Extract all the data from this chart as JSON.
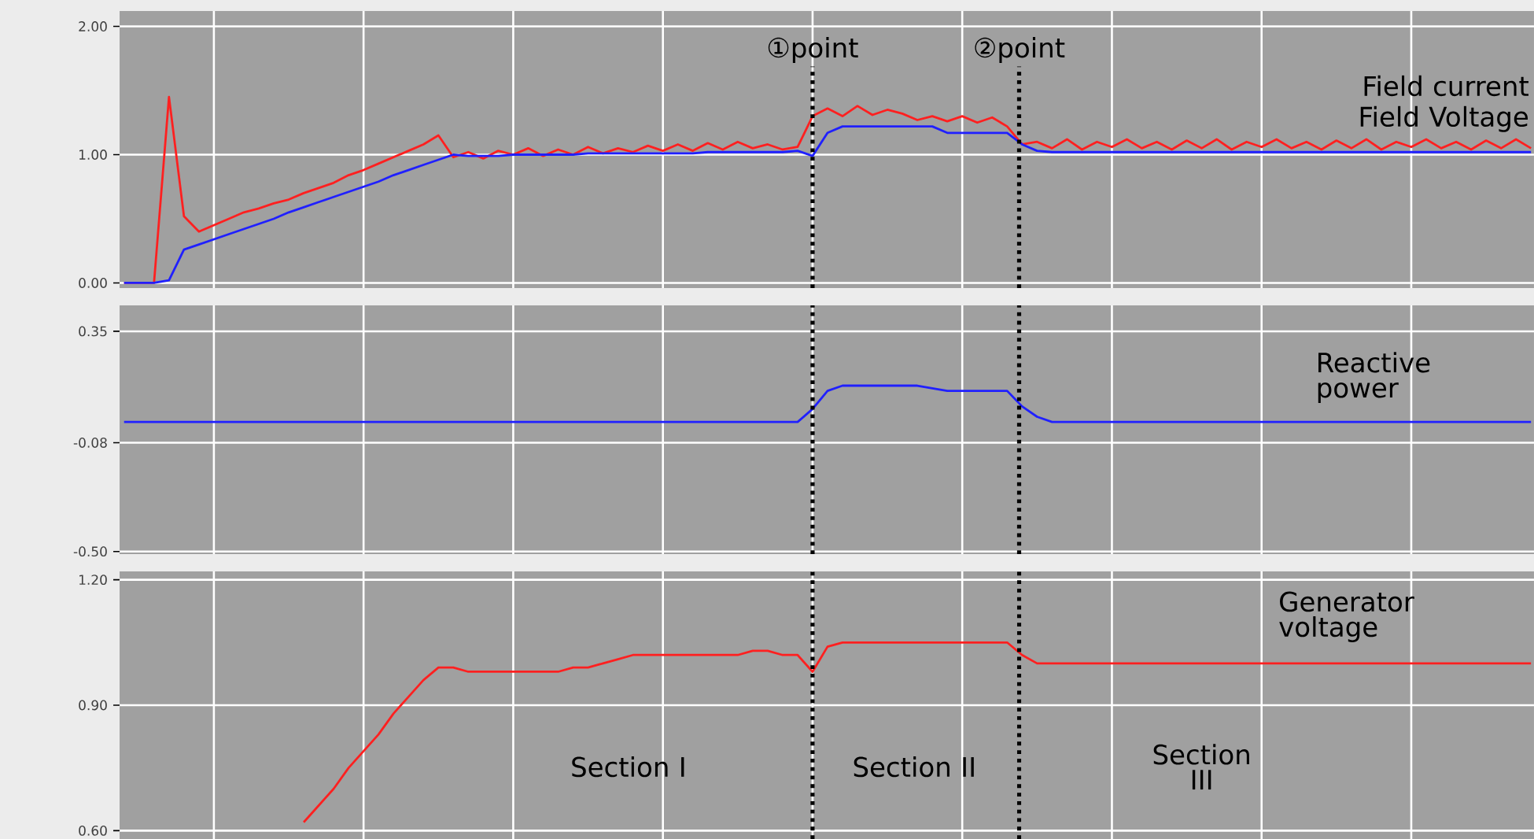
{
  "chart_data": [
    {
      "type": "line",
      "ylim": [
        -0.04,
        2.12
      ],
      "categories": [
        null,
        null,
        null,
        null,
        null,
        null,
        null,
        null,
        null,
        null,
        null,
        null,
        null,
        null,
        null,
        null,
        null,
        null,
        null,
        null,
        null,
        null,
        null,
        null,
        null,
        null,
        null,
        null,
        null,
        null,
        null,
        null,
        null,
        null,
        null,
        null,
        null,
        null,
        null,
        null,
        null,
        null,
        null,
        null,
        null,
        null,
        null,
        null,
        null,
        null,
        null,
        null,
        null,
        null,
        null,
        null,
        null,
        null,
        null,
        null,
        null,
        null,
        null,
        null,
        null,
        null,
        null,
        null,
        null,
        null,
        null,
        null,
        null,
        null,
        null,
        null,
        null,
        null,
        null,
        null,
        null,
        null,
        null,
        null,
        null,
        null,
        null,
        null,
        null,
        null,
        null,
        null,
        null,
        null,
        null
      ],
      "yticks": [
        {
          "value": 0,
          "label": "0.00"
        },
        {
          "value": 1,
          "label": "1.00"
        },
        {
          "value": 2,
          "label": "2.00"
        }
      ],
      "tick_labels": "y",
      "grid": true,
      "series": [
        {
          "color": "#ff2020",
          "values": [
            0,
            0,
            0,
            1.45,
            0.52,
            0.4,
            0.45,
            0.5,
            0.55,
            0.58,
            0.62,
            0.65,
            0.7,
            0.74,
            0.78,
            0.84,
            0.88,
            0.93,
            0.98,
            1.03,
            1.08,
            1.15,
            0.98,
            1.02,
            0.97,
            1.03,
            1.0,
            1.05,
            0.99,
            1.04,
            1.0,
            1.06,
            1.01,
            1.05,
            1.02,
            1.07,
            1.03,
            1.08,
            1.03,
            1.09,
            1.04,
            1.1,
            1.05,
            1.08,
            1.04,
            1.06,
            1.3,
            1.36,
            1.3,
            1.38,
            1.31,
            1.35,
            1.32,
            1.27,
            1.3,
            1.26,
            1.3,
            1.25,
            1.29,
            1.22,
            1.08,
            1.1,
            1.05,
            1.12,
            1.04,
            1.1,
            1.06,
            1.12,
            1.05,
            1.1,
            1.04,
            1.11,
            1.05,
            1.12,
            1.04,
            1.1,
            1.06,
            1.12,
            1.05,
            1.1,
            1.04,
            1.11,
            1.05,
            1.12,
            1.04,
            1.1,
            1.06,
            1.12,
            1.05,
            1.1,
            1.04,
            1.11,
            1.05,
            1.12,
            1.05
          ]
        },
        {
          "color": "#2020ff",
          "values": [
            0,
            0,
            0,
            0.02,
            0.26,
            0.3,
            0.34,
            0.38,
            0.42,
            0.46,
            0.5,
            0.55,
            0.59,
            0.63,
            0.67,
            0.71,
            0.75,
            0.79,
            0.84,
            0.88,
            0.92,
            0.96,
            1.0,
            0.99,
            0.99,
            0.99,
            1.0,
            1.0,
            1.0,
            1.0,
            1.0,
            1.01,
            1.01,
            1.01,
            1.01,
            1.01,
            1.01,
            1.01,
            1.01,
            1.02,
            1.02,
            1.02,
            1.02,
            1.02,
            1.02,
            1.03,
            0.99,
            1.17,
            1.22,
            1.22,
            1.22,
            1.22,
            1.22,
            1.22,
            1.22,
            1.17,
            1.17,
            1.17,
            1.17,
            1.17,
            1.08,
            1.03,
            1.02,
            1.02,
            1.02,
            1.02,
            1.02,
            1.02,
            1.02,
            1.02,
            1.02,
            1.02,
            1.02,
            1.02,
            1.02,
            1.02,
            1.02,
            1.02,
            1.02,
            1.02,
            1.02,
            1.02,
            1.02,
            1.02,
            1.02,
            1.02,
            1.02,
            1.02,
            1.02,
            1.02,
            1.02,
            1.02,
            1.02,
            1.02,
            1.02
          ]
        }
      ],
      "ref_lines": [
        {
          "axis": "x",
          "label": "①point",
          "color": "#000000",
          "line_style": "dotted"
        },
        {
          "axis": "x",
          "label": "②point",
          "color": "#000000",
          "line_style": "dotted"
        }
      ],
      "annotations": [
        "Field current",
        "Field Voltage"
      ]
    },
    {
      "type": "line",
      "ylim": [
        -0.51,
        0.45
      ],
      "categories": [
        null,
        null,
        null,
        null,
        null,
        null,
        null,
        null,
        null,
        null,
        null,
        null,
        null,
        null,
        null,
        null,
        null,
        null,
        null,
        null,
        null,
        null,
        null,
        null,
        null,
        null,
        null,
        null,
        null,
        null,
        null,
        null,
        null,
        null,
        null,
        null,
        null,
        null,
        null,
        null,
        null,
        null,
        null,
        null,
        null,
        null,
        null,
        null,
        null,
        null,
        null,
        null,
        null,
        null,
        null,
        null,
        null,
        null,
        null,
        null,
        null,
        null,
        null,
        null,
        null,
        null,
        null,
        null,
        null,
        null,
        null,
        null,
        null,
        null,
        null,
        null,
        null,
        null,
        null,
        null,
        null,
        null,
        null,
        null,
        null,
        null,
        null,
        null,
        null,
        null,
        null,
        null,
        null,
        null,
        null
      ],
      "yticks": [
        {
          "value": -0.5,
          "label": "-0.50"
        },
        {
          "value": -0.08,
          "label": "-0.08"
        },
        {
          "value": 0.35,
          "label": "0.35"
        }
      ],
      "tick_labels": "y",
      "grid": true,
      "series": [
        {
          "color": "#2020ff",
          "values": [
            0,
            0,
            0,
            0,
            0,
            0,
            0,
            0,
            0,
            0,
            0,
            0,
            0,
            0,
            0,
            0,
            0,
            0,
            0,
            0,
            0,
            0,
            0,
            0,
            0,
            0,
            0,
            0,
            0,
            0,
            0,
            0,
            0,
            0,
            0,
            0,
            0,
            0,
            0,
            0,
            0,
            0,
            0,
            0,
            0,
            0,
            0.05,
            0.12,
            0.14,
            0.14,
            0.14,
            0.14,
            0.14,
            0.14,
            0.13,
            0.12,
            0.12,
            0.12,
            0.12,
            0.12,
            0.06,
            0.02,
            0,
            0,
            0,
            0,
            0,
            0,
            0,
            0,
            0,
            0,
            0,
            0,
            0,
            0,
            0,
            0,
            0,
            0,
            0,
            0,
            0,
            0,
            0,
            0,
            0,
            0,
            0,
            0,
            0,
            0,
            0,
            0,
            0
          ]
        }
      ],
      "ref_lines": [
        {
          "axis": "x",
          "color": "#000000",
          "line_style": "dotted"
        },
        {
          "axis": "x",
          "color": "#000000",
          "line_style": "dotted"
        }
      ],
      "annotations": [
        "Reactive power"
      ]
    },
    {
      "type": "line",
      "ylim": [
        0.58,
        1.22
      ],
      "categories": [
        null,
        null,
        null,
        null,
        null,
        null,
        null,
        null,
        null,
        null,
        null,
        null,
        null,
        null,
        null,
        null,
        null,
        null,
        null,
        null,
        null,
        null,
        null,
        null,
        null,
        null,
        null,
        null,
        null,
        null,
        null,
        null,
        null,
        null,
        null,
        null,
        null,
        null,
        null,
        null,
        null,
        null,
        null,
        null,
        null,
        null,
        null,
        null,
        null,
        null,
        null,
        null,
        null,
        null,
        null,
        null,
        null,
        null,
        null,
        null,
        null,
        null,
        null,
        null,
        null,
        null,
        null,
        null,
        null,
        null,
        null,
        null,
        null,
        null,
        null,
        null,
        null,
        null,
        null,
        null,
        null,
        null,
        null,
        null,
        null,
        null,
        null,
        null,
        null,
        null,
        null,
        null,
        null,
        null,
        null
      ],
      "yticks": [
        {
          "value": 0.6,
          "label": "0.60"
        },
        {
          "value": 0.9,
          "label": "0.90"
        },
        {
          "value": 1.2,
          "label": "1.20"
        }
      ],
      "tick_labels": "y",
      "grid": true,
      "series": [
        {
          "color": "#ff2020",
          "values": [
            null,
            null,
            null,
            null,
            null,
            null,
            null,
            null,
            null,
            null,
            null,
            null,
            0.62,
            0.66,
            0.7,
            0.75,
            0.79,
            0.83,
            0.88,
            0.92,
            0.96,
            0.99,
            0.99,
            0.98,
            0.98,
            0.98,
            0.98,
            0.98,
            0.98,
            0.98,
            0.99,
            0.99,
            1.0,
            1.01,
            1.02,
            1.02,
            1.02,
            1.02,
            1.02,
            1.02,
            1.02,
            1.02,
            1.03,
            1.03,
            1.02,
            1.02,
            0.98,
            1.04,
            1.05,
            1.05,
            1.05,
            1.05,
            1.05,
            1.05,
            1.05,
            1.05,
            1.05,
            1.05,
            1.05,
            1.05,
            1.02,
            1.0,
            1.0,
            1.0,
            1.0,
            1.0,
            1.0,
            1.0,
            1.0,
            1.0,
            1.0,
            1.0,
            1.0,
            1.0,
            1.0,
            1.0,
            1.0,
            1.0,
            1.0,
            1.0,
            1.0,
            1.0,
            1.0,
            1.0,
            1.0,
            1.0,
            1.0,
            1.0,
            1.0,
            1.0,
            1.0,
            1.0,
            1.0,
            1.0,
            1.0
          ]
        }
      ],
      "ref_lines": [
        {
          "axis": "x",
          "color": "#000000",
          "line_style": "dotted"
        },
        {
          "axis": "x",
          "color": "#000000",
          "line_style": "dotted"
        }
      ],
      "annotations": [
        "Generator voltage",
        "Section I",
        "Section II",
        "Section III"
      ]
    }
  ]
}
